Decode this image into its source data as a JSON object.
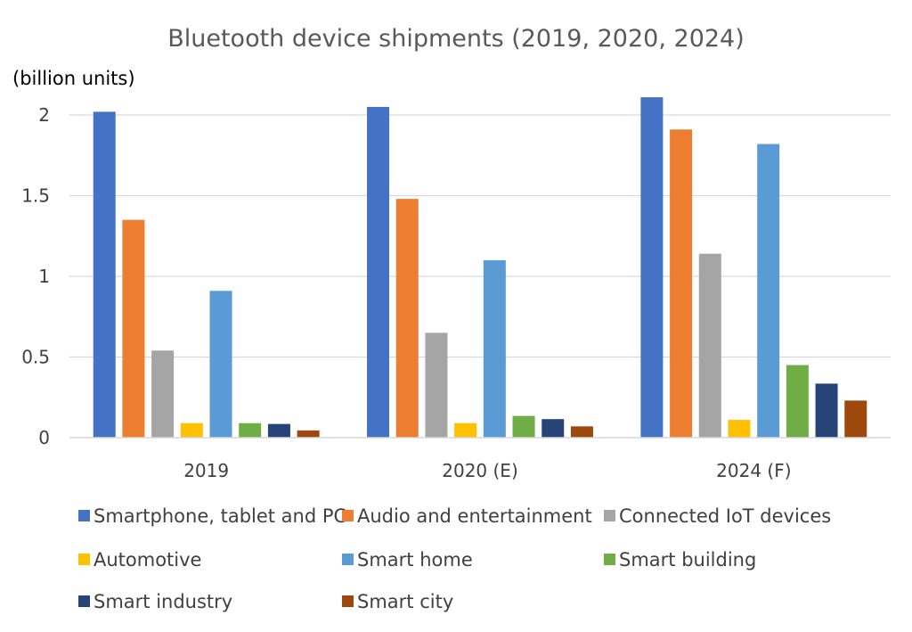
{
  "chart_data": {
    "type": "bar",
    "title": "Bluetooth device shipments (2019, 2020, 2024)",
    "ylabel": "(billion units)",
    "xlabel": "",
    "categories": [
      "2019",
      "2020 (E)",
      "2024 (F)"
    ],
    "ylim": [
      0,
      2
    ],
    "yticks": [
      "0",
      "0.5",
      "1",
      "1.5",
      "2"
    ],
    "grid": true,
    "legend_position": "bottom",
    "series": [
      {
        "name": "Smartphone, tablet and PC",
        "color": "#4472C4",
        "values": [
          2.02,
          2.05,
          2.11
        ]
      },
      {
        "name": "Audio and entertainment",
        "color": "#ED7D31",
        "values": [
          1.35,
          1.48,
          1.91
        ]
      },
      {
        "name": "Connected IoT devices",
        "color": "#A5A5A5",
        "values": [
          0.54,
          0.65,
          1.14
        ]
      },
      {
        "name": "Automotive",
        "color": "#FFC000",
        "values": [
          0.09,
          0.09,
          0.11
        ]
      },
      {
        "name": "Smart home",
        "color": "#5B9BD5",
        "values": [
          0.91,
          1.1,
          1.82
        ]
      },
      {
        "name": "Smart building",
        "color": "#70AD47",
        "values": [
          0.09,
          0.135,
          0.45
        ]
      },
      {
        "name": "Smart industry",
        "color": "#264478",
        "values": [
          0.085,
          0.115,
          0.335
        ]
      },
      {
        "name": "Smart city",
        "color": "#9E480E",
        "values": [
          0.045,
          0.07,
          0.23
        ]
      }
    ]
  }
}
